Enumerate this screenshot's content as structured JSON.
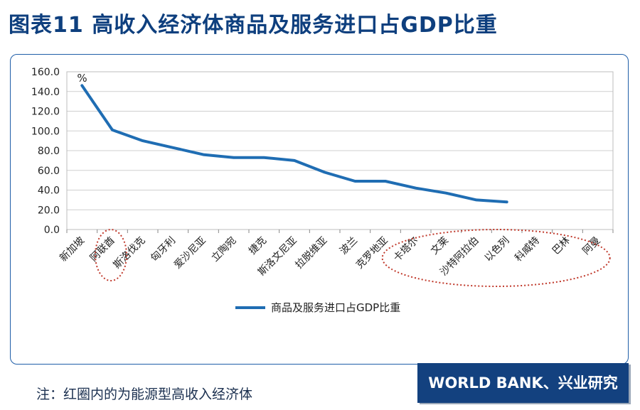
{
  "figure_title": "图表11 高收入经济体商品及服务进口占GDP比重",
  "note": "注：红圈内的为能源型高收入经济体",
  "source": "WORLD BANK、兴业研究",
  "colors": {
    "title": "#0e3f7e",
    "series": "#1f6db3",
    "grid": "#cfcfcf",
    "highlight": "#c0392b",
    "source_bg": "#13417f"
  },
  "chart_data": {
    "type": "line",
    "title": "",
    "ylabel": "%",
    "xlabel": "",
    "ylim": [
      0,
      160
    ],
    "yticks": [
      "0.0",
      "20.0",
      "40.0",
      "60.0",
      "80.0",
      "100.0",
      "120.0",
      "140.0",
      "160.0"
    ],
    "categories": [
      "新加坡",
      "阿联酋",
      "斯洛伐克",
      "匈牙利",
      "爱沙尼亚",
      "立陶宛",
      "捷克",
      "斯洛文尼亚",
      "拉脱维亚",
      "波兰",
      "克罗地亚",
      "卡塔尔",
      "文莱",
      "沙特阿拉伯",
      "以色列",
      "科威特",
      "巴林",
      "阿曼"
    ],
    "series": [
      {
        "name": "商品及服务进口占GDP比重",
        "values": [
          146,
          101,
          90,
          83,
          76,
          73,
          73,
          70,
          58,
          49,
          49,
          42,
          37,
          30,
          28,
          null,
          null,
          null
        ]
      }
    ],
    "legend_position": "bottom-center",
    "grid": true,
    "highlighted_categories": [
      "阿联酋",
      "卡塔尔",
      "文莱",
      "沙特阿拉伯",
      "以色列",
      "科威特",
      "巴林",
      "阿曼"
    ]
  }
}
